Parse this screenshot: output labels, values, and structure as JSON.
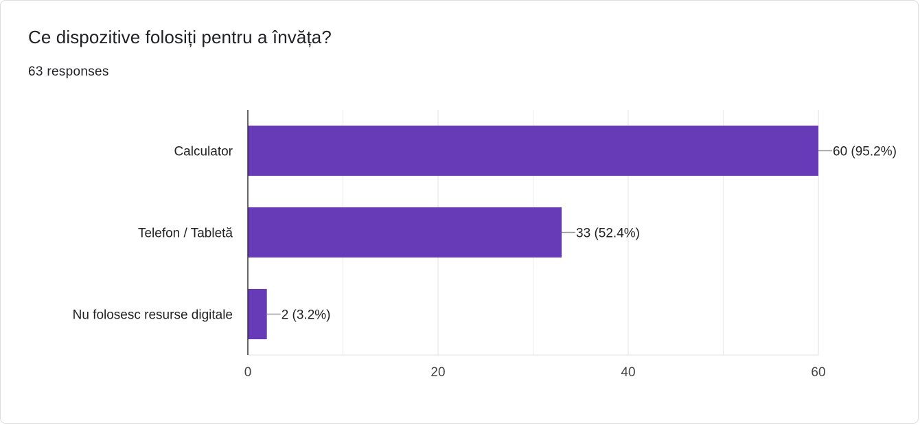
{
  "question": {
    "title": "Ce dispozitive folosiți pentru a învăța?",
    "responses": "63 responses"
  },
  "colors": {
    "bar": "#673ab7",
    "grid": "#ebebeb",
    "axis": "#333333",
    "leader": "#999999"
  },
  "chart_data": {
    "type": "bar",
    "orientation": "horizontal",
    "categories": [
      "Calculator",
      "Telefon / Tabletă",
      "Nu folosesc resurse digitale"
    ],
    "values": [
      60,
      33,
      2
    ],
    "data_labels": [
      "60 (95.2%)",
      "33 (52.4%)",
      "2 (3.2%)"
    ],
    "xlim": [
      0,
      60
    ],
    "xticks": [
      0,
      20,
      40,
      60
    ],
    "minor_gridlines": [
      10,
      30,
      50
    ],
    "grid": true,
    "legend": "none"
  }
}
